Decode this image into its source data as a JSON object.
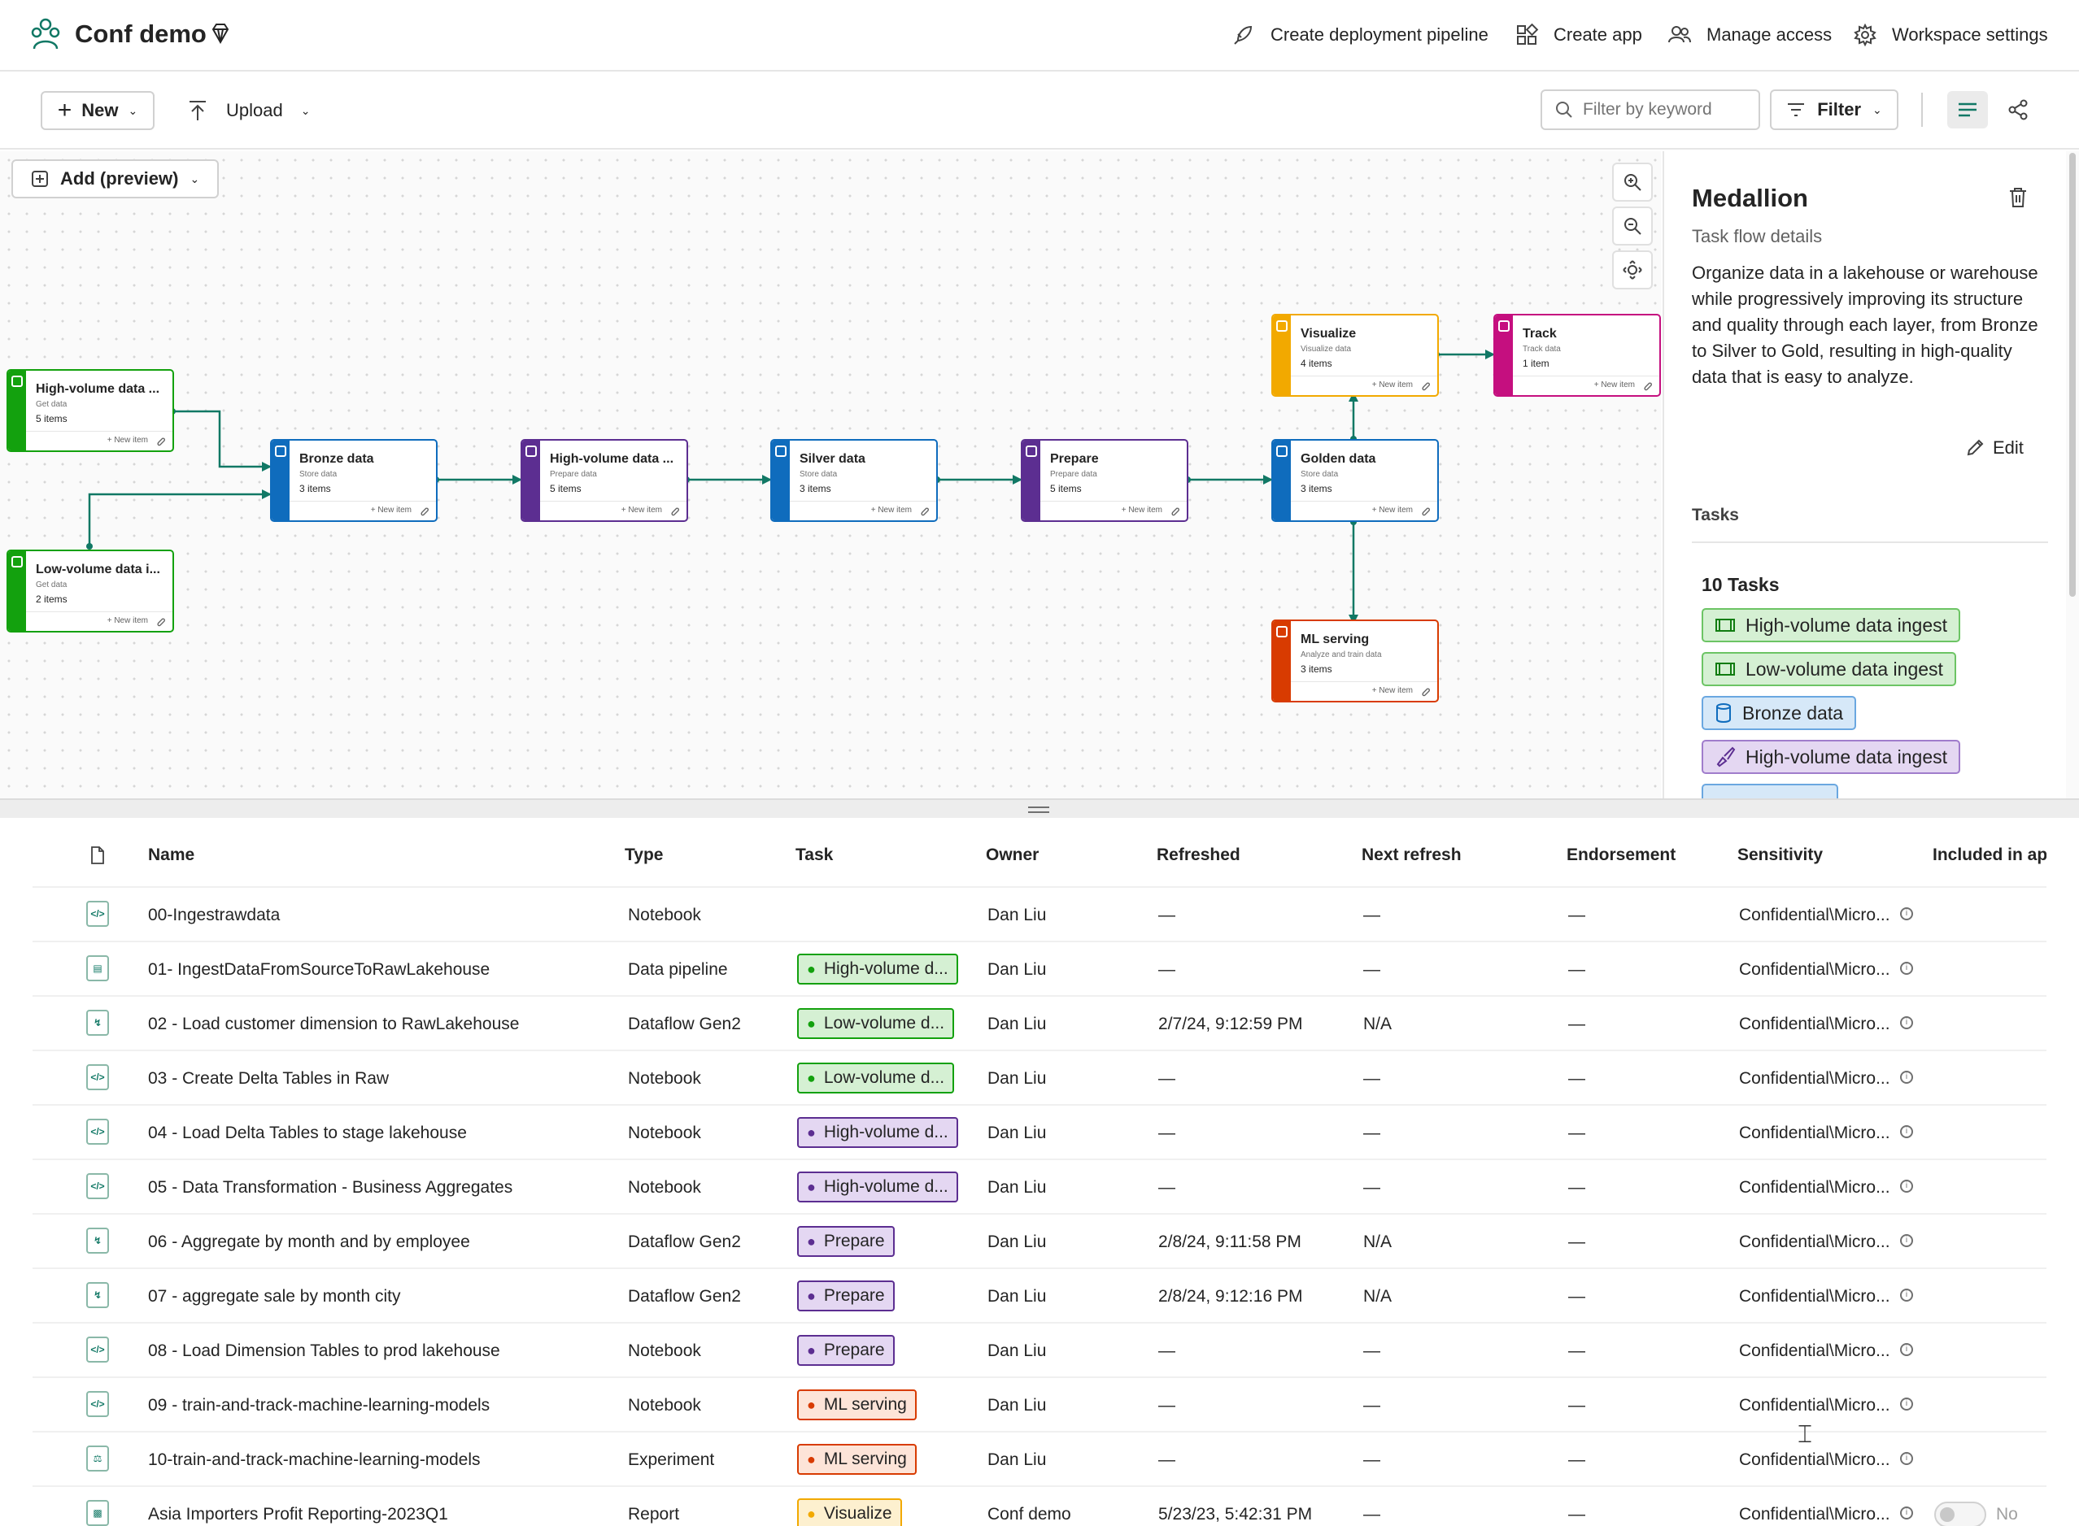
{
  "workspace": {
    "title": "Conf demo",
    "actions": [
      "Create deployment pipeline",
      "Create app",
      "Manage access",
      "Workspace settings"
    ]
  },
  "toolbar": {
    "new_label": "New",
    "upload_label": "Upload",
    "search_placeholder": "Filter by keyword",
    "filter_label": "Filter"
  },
  "canvas": {
    "add_label": "Add (preview)",
    "new_item_label": "New item",
    "nodes": [
      {
        "title": "High-volume data ...",
        "subtitle": "Get data",
        "count": "5 items",
        "color": "#13a10e"
      },
      {
        "title": "Low-volume data i...",
        "subtitle": "Get data",
        "count": "2 items",
        "color": "#13a10e"
      },
      {
        "title": "Bronze data",
        "subtitle": "Store data",
        "count": "3 items",
        "color": "#0f6cbd"
      },
      {
        "title": "High-volume data ...",
        "subtitle": "Prepare data",
        "count": "5 items",
        "color": "#5c2e91"
      },
      {
        "title": "Silver data",
        "subtitle": "Store data",
        "count": "3 items",
        "color": "#0f6cbd"
      },
      {
        "title": "Prepare",
        "subtitle": "Prepare data",
        "count": "5 items",
        "color": "#5c2e91"
      },
      {
        "title": "Golden data",
        "subtitle": "Store data",
        "count": "3 items",
        "color": "#0f6cbd"
      },
      {
        "title": "Visualize",
        "subtitle": "Visualize data",
        "count": "4 items",
        "color": "#f2a900"
      },
      {
        "title": "Track",
        "subtitle": "Track data",
        "count": "1 item",
        "color": "#c50f7f"
      },
      {
        "title": "ML serving",
        "subtitle": "Analyze and train data",
        "count": "3 items",
        "color": "#d83b01"
      }
    ]
  },
  "panel": {
    "title": "Medallion",
    "subtitle": "Task flow details",
    "description": "Organize data in a lakehouse or warehouse while progressively improving its structure and quality through each layer, from Bronze to Silver to Gold, resulting in high-quality data that is easy to analyze.",
    "edit_label": "Edit",
    "tasks_heading": "Tasks",
    "tasks_count": "10 Tasks",
    "tasks": [
      {
        "label": "High-volume data ingest",
        "kind": "ingest"
      },
      {
        "label": "Low-volume data ingest",
        "kind": "ingest"
      },
      {
        "label": "Bronze data",
        "kind": "store"
      },
      {
        "label": "High-volume data ingest",
        "kind": "prepare"
      }
    ]
  },
  "table": {
    "columns": [
      "Name",
      "Type",
      "Task",
      "Owner",
      "Refreshed",
      "Next refresh",
      "Endorsement",
      "Sensitivity",
      "Included in ap"
    ],
    "rows": [
      {
        "icon": "notebook-icon",
        "name": "00-Ingestrawdata",
        "type": "Notebook",
        "task": "",
        "task_kind": "",
        "owner": "Dan Liu",
        "refreshed": "—",
        "next": "—",
        "endorsement": "—",
        "sensitivity": "Confidential\\Micro..."
      },
      {
        "icon": "pipeline-icon",
        "name": "01- IngestDataFromSourceToRawLakehouse",
        "type": "Data pipeline",
        "task": "High-volume d...",
        "task_kind": "ingest",
        "owner": "Dan Liu",
        "refreshed": "—",
        "next": "—",
        "endorsement": "—",
        "sensitivity": "Confidential\\Micro..."
      },
      {
        "icon": "dataflow-icon",
        "name": "02 - Load customer dimension to RawLakehouse",
        "type": "Dataflow Gen2",
        "task": "Low-volume d...",
        "task_kind": "ingest",
        "owner": "Dan Liu",
        "refreshed": "2/7/24, 9:12:59 PM",
        "next": "N/A",
        "endorsement": "—",
        "sensitivity": "Confidential\\Micro..."
      },
      {
        "icon": "notebook-icon",
        "name": "03 - Create Delta Tables in Raw",
        "type": "Notebook",
        "task": "Low-volume d...",
        "task_kind": "ingest",
        "owner": "Dan Liu",
        "refreshed": "—",
        "next": "—",
        "endorsement": "—",
        "sensitivity": "Confidential\\Micro..."
      },
      {
        "icon": "notebook-icon",
        "name": "04 - Load Delta Tables to stage lakehouse",
        "type": "Notebook",
        "task": "High-volume d...",
        "task_kind": "prepare",
        "owner": "Dan Liu",
        "refreshed": "—",
        "next": "—",
        "endorsement": "—",
        "sensitivity": "Confidential\\Micro..."
      },
      {
        "icon": "notebook-icon",
        "name": "05 - Data Transformation - Business Aggregates",
        "type": "Notebook",
        "task": "High-volume d...",
        "task_kind": "prepare",
        "owner": "Dan Liu",
        "refreshed": "—",
        "next": "—",
        "endorsement": "—",
        "sensitivity": "Confidential\\Micro..."
      },
      {
        "icon": "dataflow-icon",
        "name": "06 - Aggregate by month and by employee",
        "type": "Dataflow Gen2",
        "task": "Prepare",
        "task_kind": "prepare",
        "owner": "Dan Liu",
        "refreshed": "2/8/24, 9:11:58 PM",
        "next": "N/A",
        "endorsement": "—",
        "sensitivity": "Confidential\\Micro..."
      },
      {
        "icon": "dataflow-icon",
        "name": "07 - aggregate sale by month city",
        "type": "Dataflow Gen2",
        "task": "Prepare",
        "task_kind": "prepare",
        "owner": "Dan Liu",
        "refreshed": "2/8/24, 9:12:16 PM",
        "next": "N/A",
        "endorsement": "—",
        "sensitivity": "Confidential\\Micro..."
      },
      {
        "icon": "notebook-icon",
        "name": "08 - Load Dimension Tables to prod lakehouse",
        "type": "Notebook",
        "task": "Prepare",
        "task_kind": "prepare",
        "owner": "Dan Liu",
        "refreshed": "—",
        "next": "—",
        "endorsement": "—",
        "sensitivity": "Confidential\\Micro..."
      },
      {
        "icon": "notebook-icon",
        "name": "09 - train-and-track-machine-learning-models",
        "type": "Notebook",
        "task": "ML serving",
        "task_kind": "ml",
        "owner": "Dan Liu",
        "refreshed": "—",
        "next": "—",
        "endorsement": "—",
        "sensitivity": "Confidential\\Micro..."
      },
      {
        "icon": "experiment-icon",
        "name": "10-train-and-track-machine-learning-models",
        "type": "Experiment",
        "task": "ML serving",
        "task_kind": "ml",
        "owner": "Dan Liu",
        "refreshed": "—",
        "next": "—",
        "endorsement": "—",
        "sensitivity": "Confidential\\Micro..."
      },
      {
        "icon": "report-icon",
        "name": "Asia Importers Profit Reporting-2023Q1",
        "type": "Report",
        "task": "Visualize",
        "task_kind": "visualize",
        "owner": "Conf demo",
        "refreshed": "5/23/23, 5:42:31 PM",
        "next": "—",
        "endorsement": "—",
        "sensitivity": "Confidential\\Micro...",
        "included": "No"
      }
    ]
  },
  "colors": {
    "ingest_bg": "#d5f0d3",
    "ingest_border": "#13a10e",
    "prepare_bg": "#e4d7f2",
    "prepare_border": "#5c2e91",
    "store_bg": "#d6e8f8",
    "store_border": "#0f6cbd",
    "ml_bg": "#fde4d8",
    "ml_border": "#d83b01",
    "visualize_bg": "#fdf0cf",
    "visualize_border": "#f2a900",
    "accent": "#117865"
  }
}
